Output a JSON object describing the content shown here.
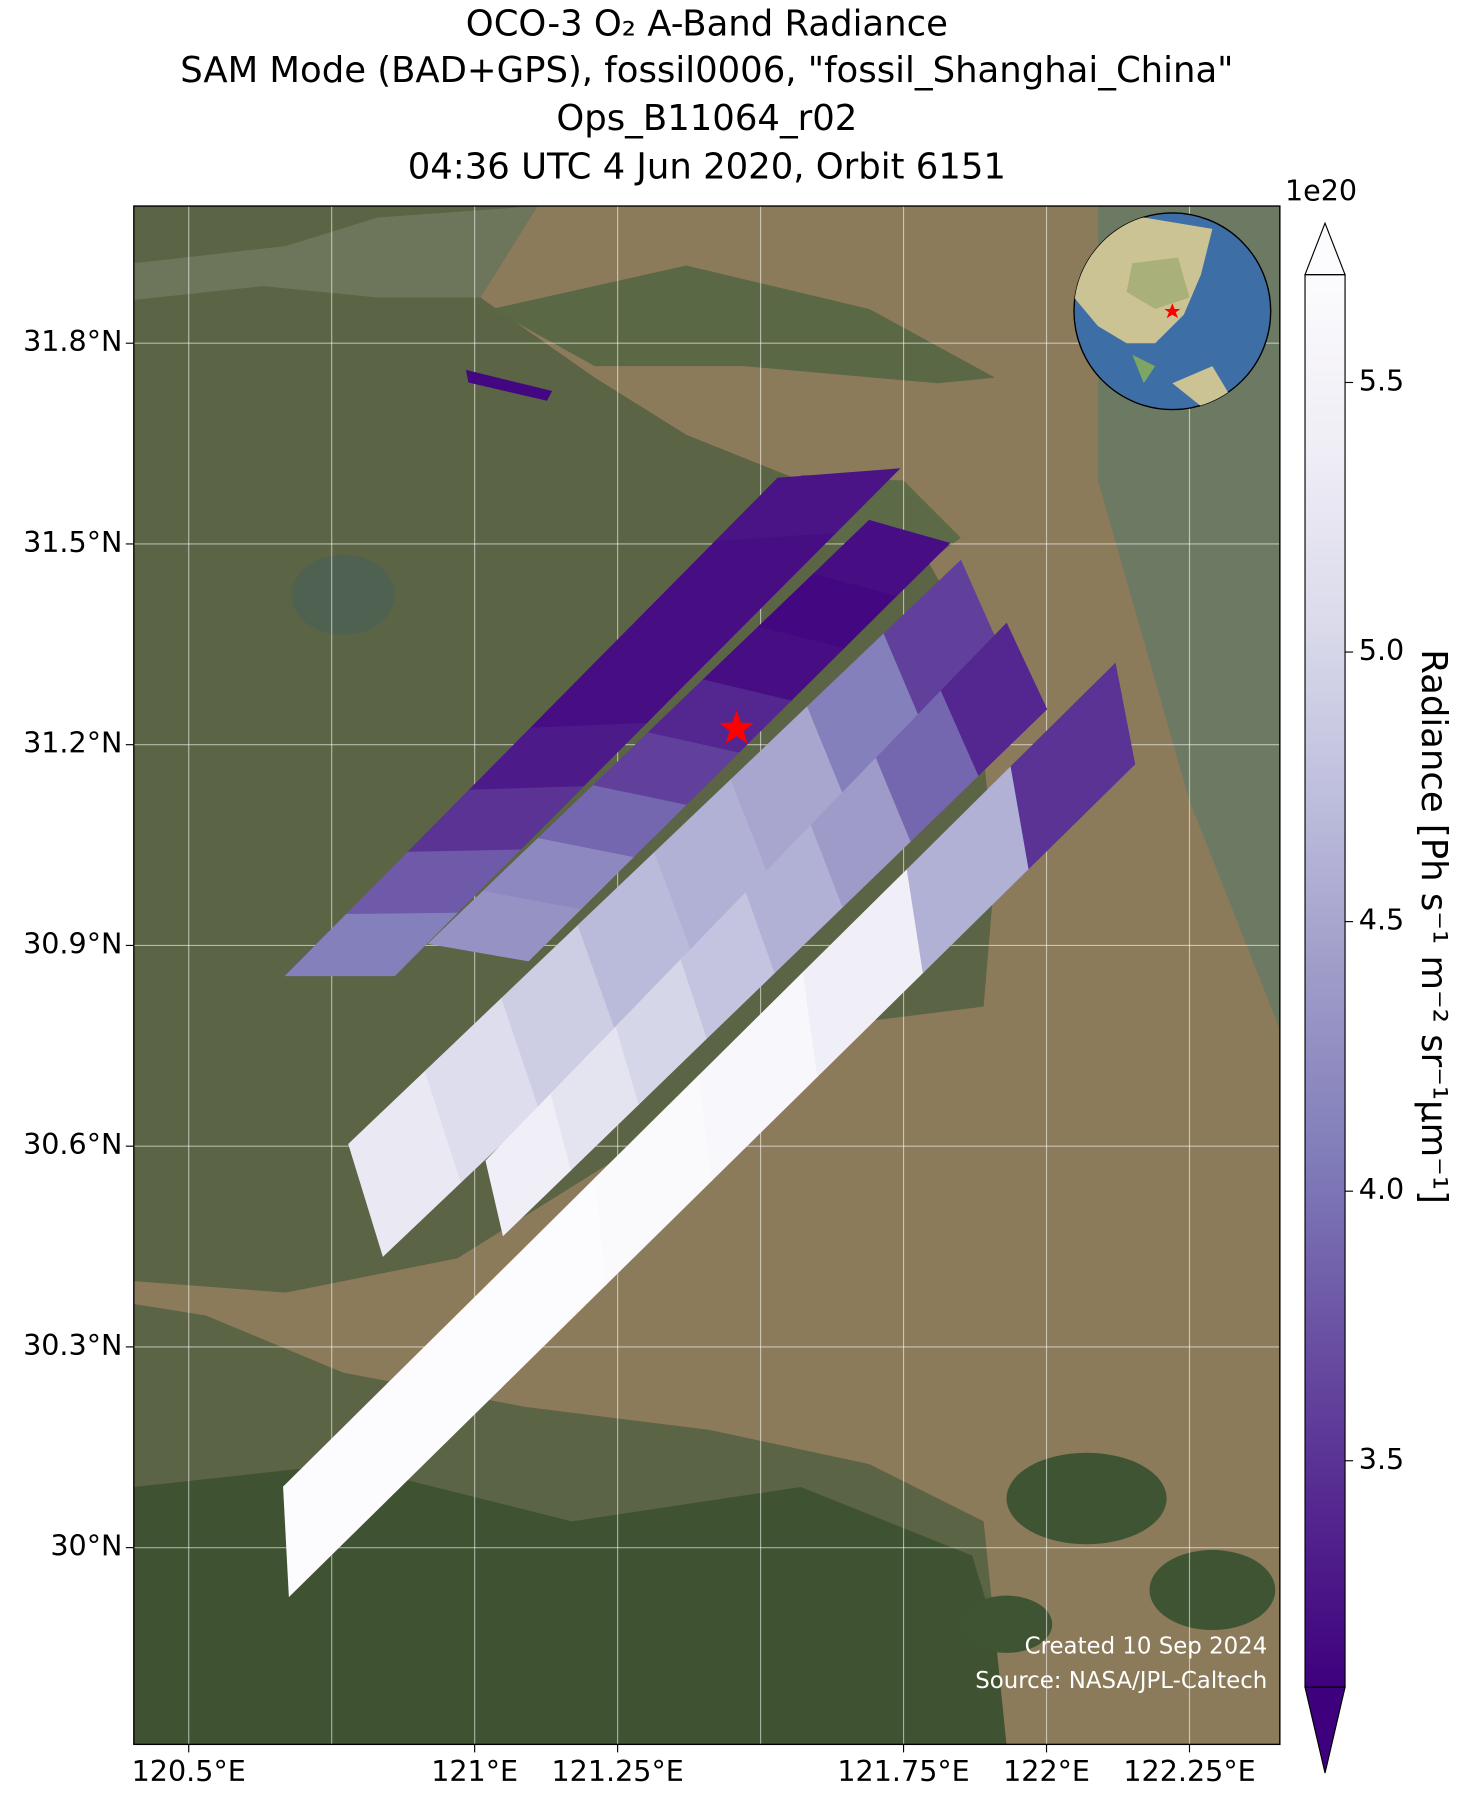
{
  "chart_data": {
    "type": "map",
    "title": [
      "OCO-3 O₂ A-Band Radiance",
      "SAM Mode (BAD+GPS), fossil0006, \"fossil_Shanghai_China\"",
      "Ops_B11064_r02",
      "04:36 UTC 4 Jun 2020, Orbit 6151"
    ],
    "xlim": [
      120.404,
      122.408
    ],
    "ylim": [
      29.706,
      32.005
    ],
    "xticks": [
      {
        "value": 120.5,
        "label": "120.5°E"
      },
      {
        "value": 120.75,
        "label": null
      },
      {
        "value": 121,
        "label": "121°E"
      },
      {
        "value": 121.25,
        "label": "121.25°E"
      },
      {
        "value": 121.5,
        "label": null
      },
      {
        "value": 121.75,
        "label": "121.75°E"
      },
      {
        "value": 122,
        "label": "122°E"
      },
      {
        "value": 122.25,
        "label": "122.25°E"
      }
    ],
    "yticks": [
      {
        "value": 30,
        "label": "30°N"
      },
      {
        "value": 30.3,
        "label": "30.3°N"
      },
      {
        "value": 30.6,
        "label": "30.6°N"
      },
      {
        "value": 30.9,
        "label": "30.9°N"
      },
      {
        "value": 31.2,
        "label": "31.2°N"
      },
      {
        "value": 31.5,
        "label": "31.5°N"
      },
      {
        "value": 31.8,
        "label": "31.8°N"
      }
    ],
    "grid": true,
    "colorbar": {
      "label": "Radiance [Ph s⁻¹ m⁻² sr⁻¹μm⁻¹]",
      "offset_label": "1e20",
      "lim": [
        3.08,
        5.7
      ],
      "ticks": [
        3.5,
        {
          "value": 4,
          "label": "4.0"
        },
        4.5,
        {
          "value": 5,
          "label": "5.0"
        },
        5.5
      ],
      "extend": "both",
      "colormap": [
        "#3f007d",
        "#54278f",
        "#6a51a3",
        "#807dba",
        "#9e9ac8",
        "#bcbddc",
        "#dadaeb",
        "#efedf5",
        "#fcfbfd"
      ]
    },
    "swaths": [
      {
        "corners": [
          [
            120.986,
            31.759
          ],
          [
            120.99,
            31.742
          ],
          [
            121.126,
            31.715
          ],
          [
            121.134,
            31.728
          ]
        ],
        "values": [
          3.15
        ]
      },
      {
        "corners": [
          [
            120.67,
            30.855
          ],
          [
            120.86,
            30.855
          ],
          [
            121.742,
            31.612
          ],
          [
            121.53,
            31.598
          ]
        ],
        "values": [
          4.1,
          3.8,
          3.5,
          3.3,
          3.2,
          3.2,
          3.2,
          3.25
        ]
      },
      {
        "corners": [
          [
            120.92,
            30.903
          ],
          [
            121.094,
            30.877
          ],
          [
            121.83,
            31.501
          ],
          [
            121.69,
            31.535
          ]
        ],
        "values": [
          4.3,
          4.2,
          3.9,
          3.6,
          3.4,
          3.2,
          3.15,
          3.2
        ]
      },
      {
        "corners": [
          [
            120.78,
            30.603
          ],
          [
            120.84,
            30.436
          ],
          [
            121.93,
            31.321
          ],
          [
            121.85,
            31.475
          ]
        ],
        "values": [
          5.3,
          5.1,
          4.9,
          4.7,
          4.6,
          4.5,
          4.1,
          3.6
        ]
      },
      {
        "corners": [
          [
            121.02,
            30.578
          ],
          [
            121.05,
            30.467
          ],
          [
            122.0,
            31.253
          ],
          [
            121.93,
            31.381
          ]
        ],
        "values": [
          5.4,
          5.2,
          5.0,
          4.8,
          4.6,
          4.4,
          3.9,
          3.4
        ]
      },
      {
        "corners": [
          [
            120.666,
            30.091
          ],
          [
            120.676,
            29.928
          ],
          [
            122.154,
            31.171
          ],
          [
            122.12,
            31.321
          ]
        ],
        "values": [
          5.7,
          5.7,
          5.7,
          5.65,
          5.6,
          5.4,
          4.6,
          3.5
        ]
      }
    ],
    "marker": {
      "lon": 121.458,
      "lat": 31.224,
      "color": "#ff0000"
    },
    "annotations": [
      "Created 10 Sep 2024",
      "Source: NASA/JPL-Caltech"
    ]
  }
}
